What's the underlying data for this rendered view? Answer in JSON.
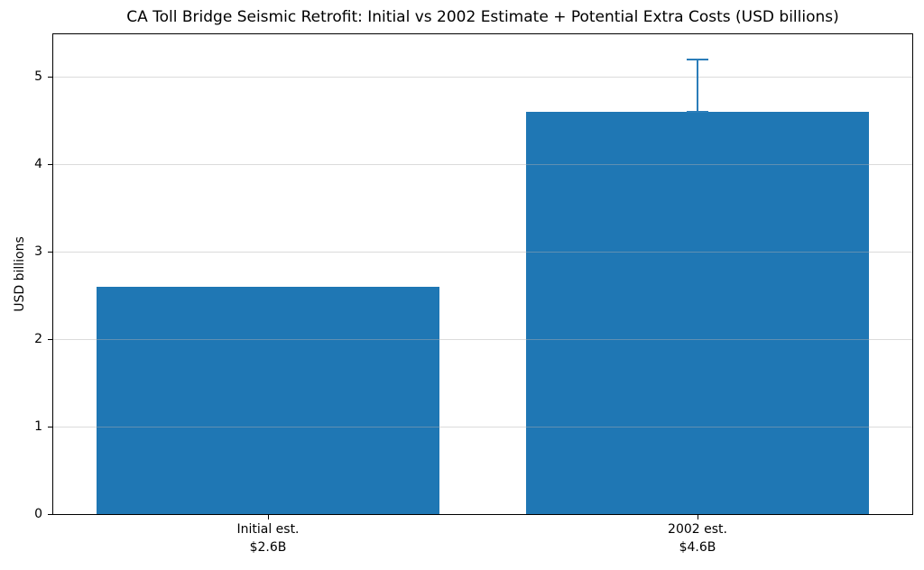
{
  "chart_data": {
    "type": "bar",
    "title": "CA Toll Bridge Seismic Retrofit: Initial vs 2002 Estimate + Potential Extra Costs (USD billions)",
    "xlabel": "",
    "ylabel": "USD billions",
    "categories": [
      "Initial est.",
      "2002 est."
    ],
    "category_sublabels": [
      "$2.6B",
      "$4.6B"
    ],
    "values": [
      2.6,
      4.6
    ],
    "error_plus": [
      0,
      0.6
    ],
    "error_minus": [
      0,
      0
    ],
    "yticks": [
      0,
      1,
      2,
      3,
      4,
      5
    ],
    "ylim": [
      0,
      5.49
    ],
    "bar_width_fraction": 0.8,
    "bar_color": "#1f77b4",
    "error_color": "#2b7db9",
    "grid": "horizontal, faint gray, drawn over bars",
    "legend_position": "none",
    "background_color": "#ffffff",
    "text_color": "#000000"
  }
}
